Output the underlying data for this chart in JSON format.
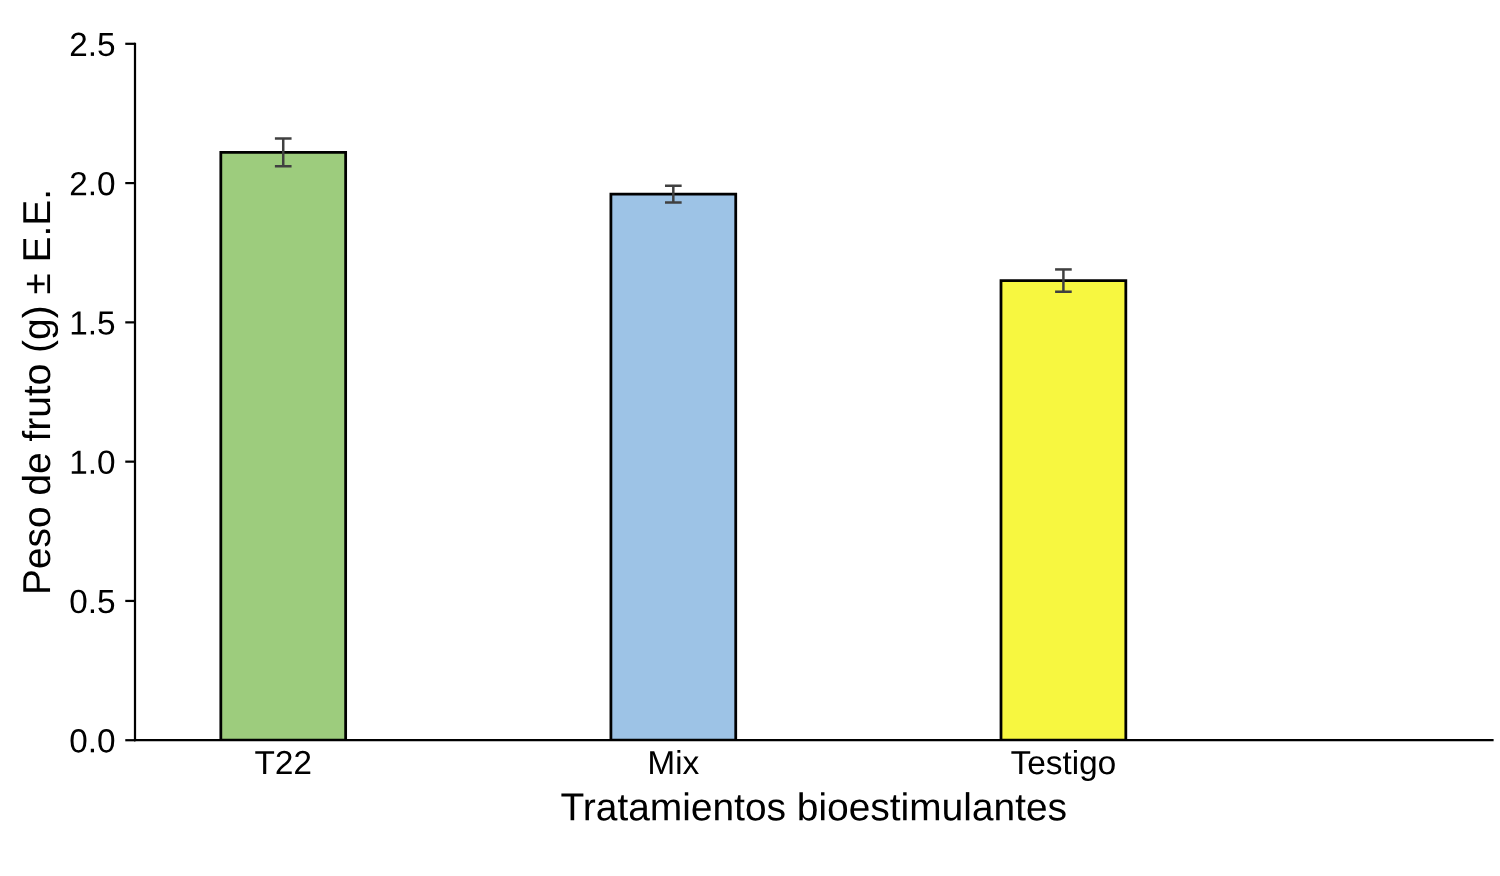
{
  "chart_data": {
    "type": "bar",
    "xlabel": "Tratamientos bioestimulantes",
    "ylabel": "Peso de fruto (g) ± E.E.",
    "categories": [
      "T22",
      "Mix",
      "Testigo"
    ],
    "values": [
      2.11,
      1.96,
      1.65
    ],
    "colors": [
      "#9dcc7d",
      "#9dc3e6",
      "#f7f740"
    ],
    "errors": [
      0.05,
      0.03,
      0.04
    ],
    "ylim": [
      0,
      2.5
    ],
    "yticks": [
      {
        "value": 0,
        "label": "0.0"
      },
      {
        "value": 0.5,
        "label": "0.5"
      },
      {
        "value": 1,
        "label": "1.0"
      },
      {
        "value": 1.5,
        "label": "1.5"
      },
      {
        "value": 2,
        "label": "2.0"
      },
      {
        "value": 2.5,
        "label": "2.5"
      }
    ],
    "grid": false,
    "legend": false
  }
}
